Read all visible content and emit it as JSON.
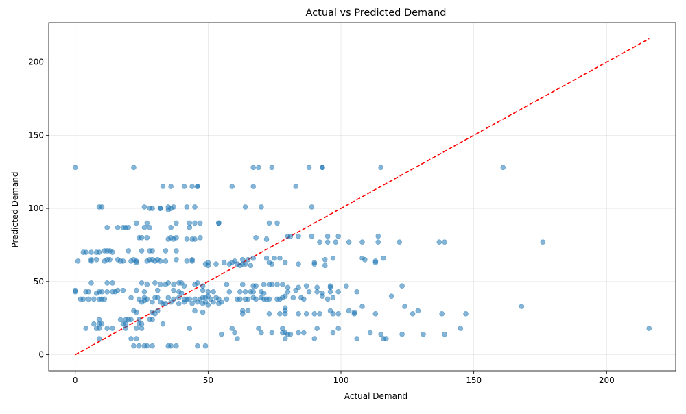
{
  "chart_data": {
    "type": "scatter",
    "title": "Actual vs Predicted Demand",
    "xlabel": "Actual Demand",
    "ylabel": "Predicted Demand",
    "xlim": [
      -10,
      226
    ],
    "ylim": [
      -11,
      227
    ],
    "xticks": [
      0,
      50,
      100,
      150,
      200
    ],
    "yticks": [
      0,
      50,
      100,
      150,
      200
    ],
    "grid": true,
    "point_color": "#1f77b4",
    "point_alpha": 0.55,
    "reference_line": {
      "style": "dashed",
      "color": "#ff0000",
      "x": [
        0,
        216
      ],
      "y": [
        0,
        216
      ]
    },
    "points": [
      [
        0,
        128
      ],
      [
        22,
        128
      ],
      [
        67,
        128
      ],
      [
        69,
        128
      ],
      [
        74,
        128
      ],
      [
        88,
        128
      ],
      [
        93,
        128
      ],
      [
        93,
        128
      ],
      [
        115,
        128
      ],
      [
        161,
        128
      ],
      [
        33,
        115
      ],
      [
        36,
        115
      ],
      [
        41,
        115
      ],
      [
        44,
        115
      ],
      [
        46,
        115
      ],
      [
        46,
        115
      ],
      [
        59,
        115
      ],
      [
        67,
        115
      ],
      [
        83,
        115
      ],
      [
        9,
        101
      ],
      [
        10,
        101
      ],
      [
        26,
        101
      ],
      [
        35,
        101
      ],
      [
        37,
        101
      ],
      [
        42,
        101
      ],
      [
        45,
        101
      ],
      [
        64,
        101
      ],
      [
        70,
        101
      ],
      [
        89,
        101
      ],
      [
        28,
        100
      ],
      [
        29,
        100
      ],
      [
        32,
        100
      ],
      [
        32,
        100
      ],
      [
        36,
        100
      ],
      [
        35,
        99
      ],
      [
        23,
        90
      ],
      [
        27,
        90
      ],
      [
        38,
        90
      ],
      [
        43,
        90
      ],
      [
        45,
        90
      ],
      [
        47,
        90
      ],
      [
        54,
        90
      ],
      [
        54,
        90
      ],
      [
        73,
        90
      ],
      [
        76,
        90
      ],
      [
        12,
        87
      ],
      [
        16,
        87
      ],
      [
        18,
        87
      ],
      [
        19,
        87
      ],
      [
        20,
        87
      ],
      [
        26,
        87
      ],
      [
        28,
        87
      ],
      [
        36,
        87
      ],
      [
        43,
        87
      ],
      [
        24,
        80
      ],
      [
        25,
        80
      ],
      [
        27,
        80
      ],
      [
        35,
        79
      ],
      [
        36,
        80
      ],
      [
        37,
        79
      ],
      [
        38,
        80
      ],
      [
        42,
        79
      ],
      [
        44,
        79
      ],
      [
        45,
        79
      ],
      [
        47,
        80
      ],
      [
        68,
        80
      ],
      [
        72,
        79
      ],
      [
        80,
        81
      ],
      [
        81,
        81
      ],
      [
        84,
        81
      ],
      [
        89,
        81
      ],
      [
        95,
        81
      ],
      [
        99,
        81
      ],
      [
        114,
        81
      ],
      [
        92,
        77
      ],
      [
        95,
        77
      ],
      [
        98,
        77
      ],
      [
        103,
        77
      ],
      [
        108,
        77
      ],
      [
        114,
        77
      ],
      [
        122,
        77
      ],
      [
        137,
        77
      ],
      [
        139,
        77
      ],
      [
        176,
        77
      ],
      [
        3,
        70
      ],
      [
        4,
        70
      ],
      [
        6,
        70
      ],
      [
        8,
        70
      ],
      [
        9,
        70
      ],
      [
        11,
        71
      ],
      [
        12,
        71
      ],
      [
        13,
        71
      ],
      [
        14,
        70
      ],
      [
        20,
        71
      ],
      [
        25,
        71
      ],
      [
        28,
        71
      ],
      [
        29,
        71
      ],
      [
        34,
        71
      ],
      [
        38,
        71
      ],
      [
        1,
        64
      ],
      [
        6,
        64
      ],
      [
        6,
        65
      ],
      [
        8,
        65
      ],
      [
        11,
        64
      ],
      [
        12,
        65
      ],
      [
        13,
        65
      ],
      [
        16,
        65
      ],
      [
        17,
        64
      ],
      [
        18,
        64
      ],
      [
        21,
        64
      ],
      [
        22,
        65
      ],
      [
        23,
        64
      ],
      [
        23,
        63
      ],
      [
        27,
        64
      ],
      [
        28,
        65
      ],
      [
        29,
        65
      ],
      [
        30,
        64
      ],
      [
        31,
        65
      ],
      [
        32,
        64
      ],
      [
        34,
        64
      ],
      [
        38,
        65
      ],
      [
        42,
        64
      ],
      [
        44,
        65
      ],
      [
        44,
        64
      ],
      [
        49,
        62
      ],
      [
        50,
        61
      ],
      [
        50,
        63
      ],
      [
        53,
        62
      ],
      [
        56,
        63
      ],
      [
        58,
        62
      ],
      [
        59,
        63
      ],
      [
        60,
        64
      ],
      [
        61,
        62
      ],
      [
        62,
        61
      ],
      [
        63,
        62
      ],
      [
        63,
        65
      ],
      [
        64,
        62
      ],
      [
        65,
        65
      ],
      [
        66,
        61
      ],
      [
        67,
        66
      ],
      [
        72,
        66
      ],
      [
        73,
        63
      ],
      [
        74,
        62
      ],
      [
        75,
        66
      ],
      [
        77,
        66
      ],
      [
        79,
        63
      ],
      [
        84,
        62
      ],
      [
        90,
        63
      ],
      [
        90,
        62
      ],
      [
        94,
        61
      ],
      [
        94,
        65
      ],
      [
        97,
        66
      ],
      [
        108,
        66
      ],
      [
        109,
        65
      ],
      [
        113,
        64
      ],
      [
        113,
        63
      ],
      [
        116,
        66
      ],
      [
        6,
        49
      ],
      [
        12,
        49
      ],
      [
        14,
        49
      ],
      [
        25,
        49
      ],
      [
        27,
        48
      ],
      [
        30,
        49
      ],
      [
        32,
        48
      ],
      [
        34,
        48
      ],
      [
        35,
        49
      ],
      [
        37,
        48
      ],
      [
        39,
        49
      ],
      [
        40,
        49
      ],
      [
        41,
        47
      ],
      [
        45,
        48
      ],
      [
        46,
        49
      ],
      [
        48,
        47
      ],
      [
        57,
        48
      ],
      [
        63,
        48
      ],
      [
        67,
        47
      ],
      [
        68,
        47
      ],
      [
        71,
        48
      ],
      [
        73,
        48
      ],
      [
        74,
        48
      ],
      [
        76,
        48
      ],
      [
        78,
        48
      ],
      [
        80,
        46
      ],
      [
        84,
        46
      ],
      [
        87,
        47
      ],
      [
        91,
        46
      ],
      [
        96,
        46
      ],
      [
        96,
        47
      ],
      [
        102,
        47
      ],
      [
        123,
        47
      ],
      [
        0,
        44
      ],
      [
        0,
        43
      ],
      [
        4,
        43
      ],
      [
        5,
        43
      ],
      [
        8,
        42
      ],
      [
        9,
        43
      ],
      [
        10,
        43
      ],
      [
        12,
        43
      ],
      [
        14,
        43
      ],
      [
        15,
        43
      ],
      [
        16,
        44
      ],
      [
        18,
        44
      ],
      [
        23,
        44
      ],
      [
        26,
        43
      ],
      [
        31,
        44
      ],
      [
        37,
        44
      ],
      [
        39,
        43
      ],
      [
        40,
        42
      ],
      [
        48,
        44
      ],
      [
        50,
        43
      ],
      [
        52,
        43
      ],
      [
        58,
        43
      ],
      [
        62,
        43
      ],
      [
        64,
        43
      ],
      [
        66,
        43
      ],
      [
        67,
        43
      ],
      [
        70,
        43
      ],
      [
        71,
        42
      ],
      [
        80,
        43
      ],
      [
        83,
        44
      ],
      [
        88,
        43
      ],
      [
        91,
        43
      ],
      [
        93,
        42
      ],
      [
        96,
        43
      ],
      [
        99,
        43
      ],
      [
        106,
        43
      ],
      [
        2,
        38
      ],
      [
        3,
        38
      ],
      [
        5,
        38
      ],
      [
        7,
        38
      ],
      [
        9,
        38
      ],
      [
        10,
        38
      ],
      [
        11,
        38
      ],
      [
        21,
        39
      ],
      [
        24,
        38
      ],
      [
        26,
        39
      ],
      [
        27,
        38
      ],
      [
        30,
        39
      ],
      [
        31,
        39
      ],
      [
        35,
        39
      ],
      [
        37,
        38
      ],
      [
        39,
        39
      ],
      [
        41,
        38
      ],
      [
        42,
        38
      ],
      [
        43,
        38
      ],
      [
        45,
        38
      ],
      [
        47,
        38
      ],
      [
        48,
        39
      ],
      [
        49,
        39
      ],
      [
        50,
        40
      ],
      [
        51,
        38
      ],
      [
        53,
        39
      ],
      [
        54,
        38
      ],
      [
        57,
        38
      ],
      [
        61,
        38
      ],
      [
        62,
        38
      ],
      [
        64,
        38
      ],
      [
        65,
        38
      ],
      [
        67,
        39
      ],
      [
        68,
        38
      ],
      [
        70,
        39
      ],
      [
        71,
        38
      ],
      [
        72,
        38
      ],
      [
        73,
        38
      ],
      [
        76,
        38
      ],
      [
        77,
        38
      ],
      [
        78,
        39
      ],
      [
        79,
        40
      ],
      [
        82,
        39
      ],
      [
        85,
        39
      ],
      [
        86,
        38
      ],
      [
        93,
        40
      ],
      [
        95,
        38
      ],
      [
        97,
        39
      ],
      [
        119,
        40
      ],
      [
        25,
        36
      ],
      [
        26,
        37
      ],
      [
        29,
        36
      ],
      [
        32,
        36
      ],
      [
        33,
        35
      ],
      [
        34,
        35
      ],
      [
        36,
        36
      ],
      [
        39,
        35
      ],
      [
        41,
        36
      ],
      [
        44,
        35
      ],
      [
        46,
        36
      ],
      [
        48,
        35
      ],
      [
        49,
        36
      ],
      [
        50,
        34
      ],
      [
        52,
        36
      ],
      [
        54,
        35
      ],
      [
        55,
        36
      ],
      [
        79,
        32
      ],
      [
        79,
        30
      ],
      [
        108,
        33
      ],
      [
        124,
        33
      ],
      [
        129,
        30
      ],
      [
        168,
        33
      ],
      [
        22,
        30
      ],
      [
        23,
        29
      ],
      [
        29,
        29
      ],
      [
        30,
        28
      ],
      [
        31,
        30
      ],
      [
        45,
        30
      ],
      [
        48,
        29
      ],
      [
        63,
        30
      ],
      [
        63,
        28
      ],
      [
        65,
        30
      ],
      [
        73,
        28
      ],
      [
        77,
        28
      ],
      [
        79,
        28
      ],
      [
        84,
        28
      ],
      [
        87,
        28
      ],
      [
        90,
        28
      ],
      [
        92,
        28
      ],
      [
        96,
        30
      ],
      [
        97,
        28
      ],
      [
        99,
        28
      ],
      [
        103,
        30
      ],
      [
        105,
        28
      ],
      [
        105,
        29
      ],
      [
        113,
        28
      ],
      [
        127,
        28
      ],
      [
        138,
        28
      ],
      [
        147,
        28
      ],
      [
        17,
        24
      ],
      [
        19,
        24
      ],
      [
        20,
        24
      ],
      [
        21,
        24
      ],
      [
        24,
        24
      ],
      [
        28,
        24
      ],
      [
        29,
        24
      ],
      [
        9,
        24
      ],
      [
        7,
        21
      ],
      [
        9,
        21
      ],
      [
        10,
        21
      ],
      [
        18,
        21
      ],
      [
        19,
        21
      ],
      [
        24,
        21
      ],
      [
        25,
        21
      ],
      [
        33,
        21
      ],
      [
        4,
        18
      ],
      [
        8,
        18
      ],
      [
        9,
        18
      ],
      [
        12,
        18
      ],
      [
        14,
        18
      ],
      [
        19,
        18
      ],
      [
        23,
        18
      ],
      [
        25,
        18
      ],
      [
        43,
        18
      ],
      [
        59,
        18
      ],
      [
        69,
        18
      ],
      [
        78,
        18
      ],
      [
        91,
        18
      ],
      [
        99,
        18
      ],
      [
        145,
        18
      ],
      [
        216,
        18
      ],
      [
        55,
        14
      ],
      [
        60,
        15
      ],
      [
        70,
        15
      ],
      [
        74,
        15
      ],
      [
        78,
        15
      ],
      [
        79,
        15
      ],
      [
        80,
        14
      ],
      [
        81,
        14
      ],
      [
        84,
        15
      ],
      [
        86,
        15
      ],
      [
        97,
        15
      ],
      [
        111,
        15
      ],
      [
        115,
        14
      ],
      [
        123,
        14
      ],
      [
        131,
        14
      ],
      [
        139,
        14
      ],
      [
        9,
        11
      ],
      [
        21,
        11
      ],
      [
        23,
        11
      ],
      [
        61,
        11
      ],
      [
        79,
        11
      ],
      [
        90,
        11
      ],
      [
        106,
        11
      ],
      [
        116,
        11
      ],
      [
        117,
        11
      ],
      [
        22,
        6
      ],
      [
        24,
        6
      ],
      [
        26,
        6
      ],
      [
        27,
        6
      ],
      [
        29,
        6
      ],
      [
        35,
        6
      ],
      [
        36,
        6
      ],
      [
        38,
        6
      ],
      [
        46,
        6
      ],
      [
        49,
        6
      ]
    ]
  }
}
